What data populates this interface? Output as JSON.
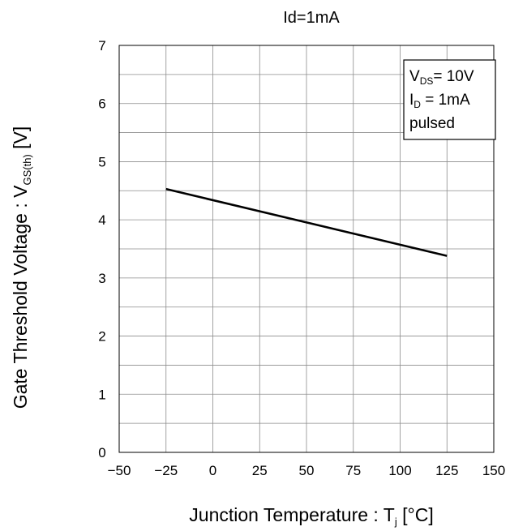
{
  "chart_data": {
    "type": "line",
    "title": "Id=1mA",
    "xlabel": {
      "main": "Junction Temperature : T",
      "sub": "j",
      "unit": " [°C]"
    },
    "ylabel": {
      "main": "Gate Threshold Voltage : V",
      "sub": "GS(th)",
      "unit": " [V]"
    },
    "xlim": [
      -50,
      150
    ],
    "ylim": [
      0,
      7
    ],
    "x_ticks": [
      -50,
      -25,
      0,
      25,
      50,
      75,
      100,
      125,
      150
    ],
    "x_tick_labels": [
      "−50",
      "−25",
      "0",
      "25",
      "50",
      "75",
      "100",
      "125",
      "150"
    ],
    "y_ticks": [
      0,
      1,
      2,
      3,
      4,
      5,
      6,
      7
    ],
    "y_tick_labels": [
      "0",
      "1",
      "2",
      "3",
      "4",
      "5",
      "6",
      "7"
    ],
    "x_minor_step": 25,
    "y_minor_step": 0.5,
    "grid": true,
    "series": [
      {
        "x": [
          -25,
          125
        ],
        "y": [
          4.53,
          3.38
        ],
        "color": "#000000"
      }
    ],
    "legend_box": {
      "placement": "top-right",
      "lines": [
        {
          "main": "V",
          "sub": "DS",
          "rest": "= 10V"
        },
        {
          "main": "I",
          "sub": "D",
          "rest": " = 1mA"
        },
        {
          "main": "pulsed",
          "sub": "",
          "rest": ""
        }
      ]
    }
  }
}
